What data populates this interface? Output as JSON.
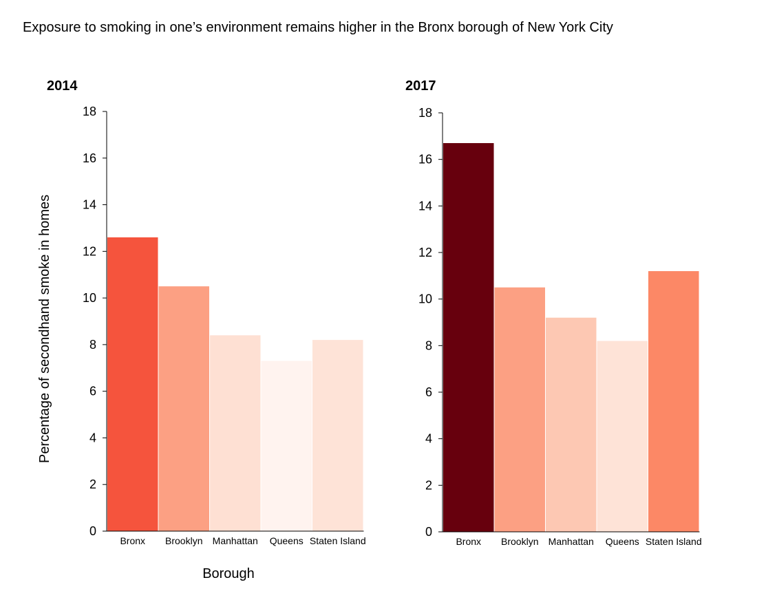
{
  "title": "Exposure to smoking in one’s environment remains higher in the Bronx borough of New York City",
  "chart_data": [
    {
      "type": "bar",
      "title": "2014",
      "xlabel": "Borough",
      "ylabel": "Percentage of secondhand smoke in homes",
      "categories": [
        "Bronx",
        "Brooklyn",
        "Manhattan",
        "Queens",
        "Staten Island"
      ],
      "values": [
        12.6,
        10.5,
        8.4,
        7.3,
        8.2
      ],
      "colors": [
        "#f5543d",
        "#fca083",
        "#fee0d3",
        "#fff3ef",
        "#fee3d7"
      ],
      "ylim": [
        0,
        18
      ],
      "yticks": [
        0,
        2,
        4,
        6,
        8,
        10,
        12,
        14,
        16,
        18
      ],
      "grid": false
    },
    {
      "type": "bar",
      "title": "2017",
      "xlabel": "",
      "ylabel": "",
      "categories": [
        "Bronx",
        "Brooklyn",
        "Manhattan",
        "Queens",
        "Staten Island"
      ],
      "values": [
        16.7,
        10.5,
        9.2,
        8.2,
        11.2
      ],
      "colors": [
        "#67000d",
        "#fca083",
        "#fdc8b3",
        "#fee3d7",
        "#fc8866"
      ],
      "ylim": [
        0,
        18
      ],
      "yticks": [
        0,
        2,
        4,
        6,
        8,
        10,
        12,
        14,
        16,
        18
      ],
      "grid": false
    }
  ]
}
